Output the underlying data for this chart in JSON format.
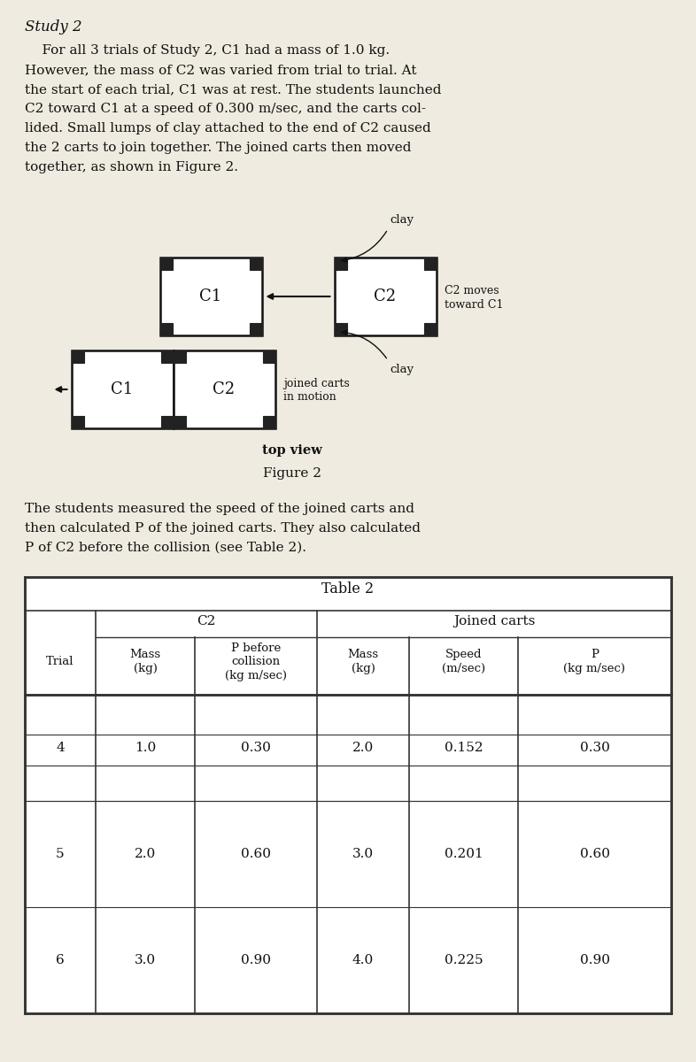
{
  "title": "Study 2",
  "para1_lines": [
    "    For all 3 trials of Study 2, C1 had a mass of 1.0 kg.",
    "However, the mass of C2 was varied from trial to trial. At",
    "the start of each trial, C1 was at rest. The students launched",
    "C2 toward C1 at a speed of 0.300 m/sec, and the carts col-",
    "lided. Small lumps of clay attached to the end of C2 caused",
    "the 2 carts to join together. The joined carts then moved",
    "together, as shown in Figure 2."
  ],
  "para2_lines": [
    "The students measured the speed of the joined carts and",
    "then calculated P of the joined carts. They also calculated",
    "P of C2 before the collision (see Table 2)."
  ],
  "fig_caption": "Figure 2",
  "top_view": "top view",
  "table_title": "Table 2",
  "col_group_c2": "C2",
  "col_group_joined": "Joined carts",
  "col_headers": [
    "Trial",
    "Mass\n(kg)",
    "P before\ncollision\n(kg m/sec)",
    "Mass\n(kg)",
    "Speed\n(m/sec)",
    "P\n(kg m/sec)"
  ],
  "table_data": [
    [
      "4",
      "1.0",
      "0.30",
      "2.0",
      "0.152",
      "0.30"
    ],
    [
      "5",
      "2.0",
      "0.60",
      "3.0",
      "0.201",
      "0.60"
    ],
    [
      "6",
      "3.0",
      "0.90",
      "4.0",
      "0.225",
      "0.90"
    ]
  ],
  "bg_color": "#f0ebe0",
  "text_color": "#111111",
  "box_color": "#111111",
  "wheel_color": "#222222",
  "table_line_color": "#333333"
}
